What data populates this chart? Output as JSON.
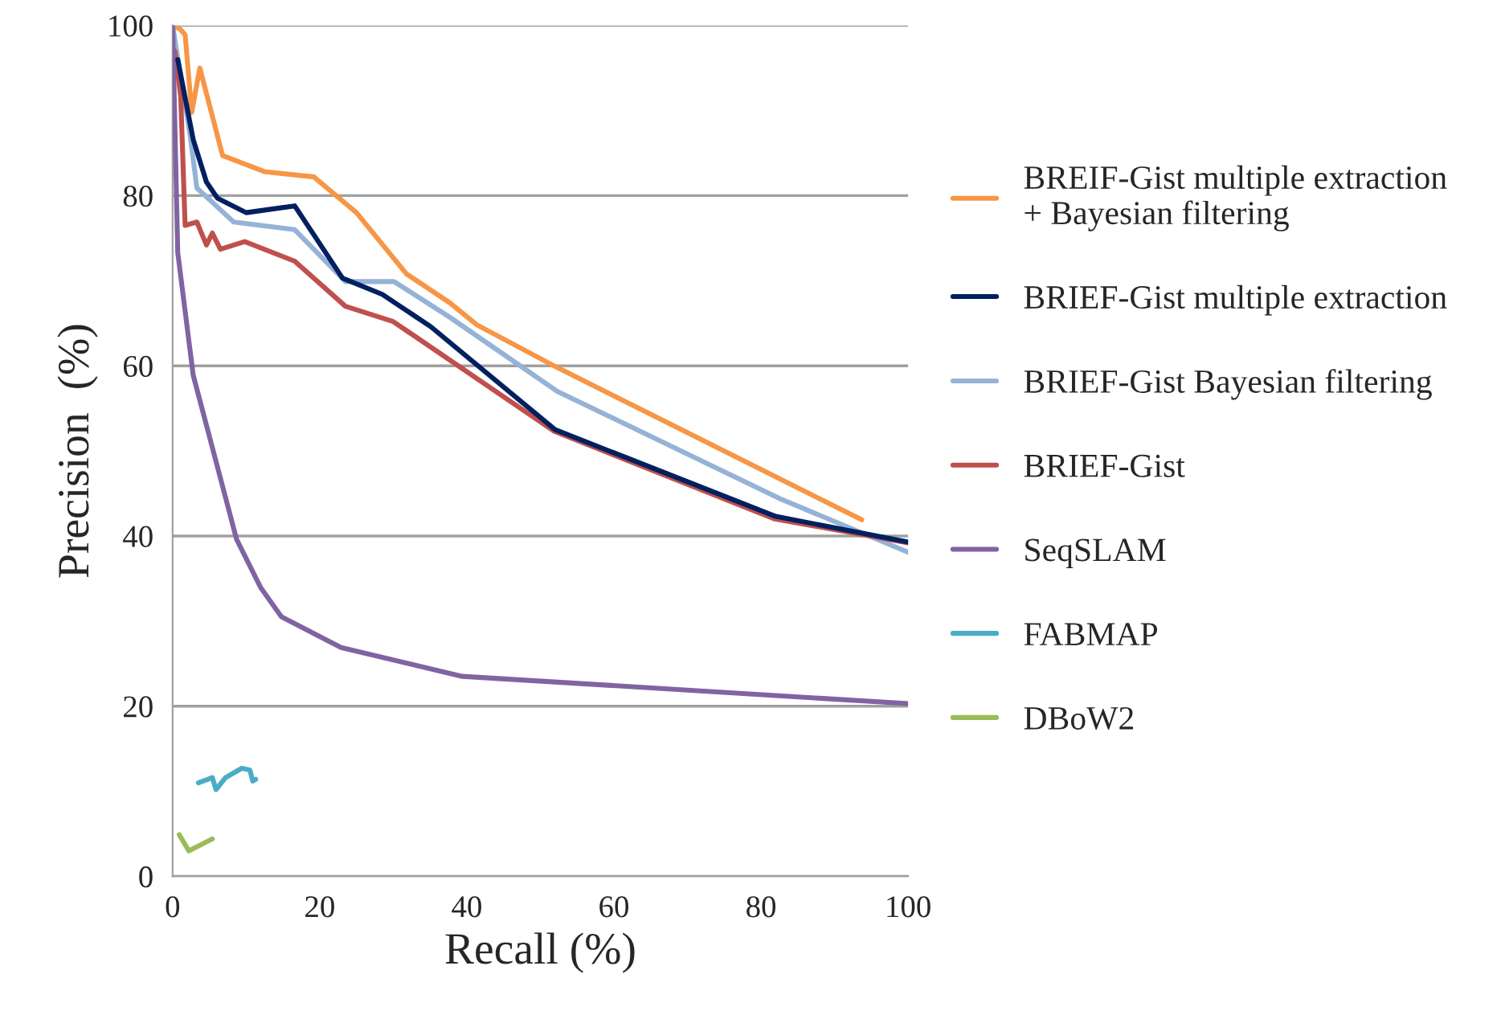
{
  "chart_data": {
    "type": "line",
    "xlabel": "Recall (%)",
    "ylabel": "Precision  (%)",
    "xlim": [
      0,
      100
    ],
    "xticks": [
      0,
      20,
      40,
      60,
      80,
      100
    ],
    "ylim": [
      0,
      100
    ],
    "yticks": [
      0,
      20,
      40,
      60,
      80,
      100
    ],
    "grid": "y",
    "legend": "right",
    "marker": "none",
    "line_style": "solid",
    "series": [
      {
        "name": "BREIF-Gist multiple extraction\n+ Bayesian filtering",
        "color": "#f79646",
        "x": [
          0,
          1,
          1.7,
          2.6,
          3.7,
          6.8,
          12.6,
          19.2,
          25,
          31.8,
          37.7,
          41.4,
          52.3,
          93.7
        ],
        "values": [
          100,
          99.6,
          98.9,
          89.8,
          95,
          84.7,
          82.8,
          82.2,
          78,
          70.8,
          67.4,
          64.8,
          59.8,
          41.9
        ]
      },
      {
        "name": "BRIEF-Gist multiple extraction",
        "color": "#002060",
        "x": [
          0.7,
          2.8,
          4.6,
          6.1,
          10,
          16.6,
          23.1,
          28.5,
          35.1,
          52,
          82,
          100
        ],
        "values": [
          96,
          86.6,
          81.6,
          79.7,
          78,
          78.8,
          70.3,
          68.4,
          64.6,
          52.5,
          42.3,
          39.3
        ]
      },
      {
        "name": "BRIEF-Gist Bayesian filtering",
        "color": "#95b3d7",
        "x": [
          0,
          2.4,
          3.3,
          8.3,
          16.6,
          23.5,
          30.1,
          37.7,
          52.3,
          82.8,
          100
        ],
        "values": [
          100,
          87,
          80.9,
          76.9,
          76,
          69.9,
          69.9,
          65.7,
          57,
          44.3,
          38.1
        ]
      },
      {
        "name": "BRIEF-Gist",
        "color": "#c0504d",
        "x": [
          0.3,
          1.1,
          1.7,
          3.3,
          4.6,
          5.4,
          6.5,
          9.8,
          16.6,
          23.5,
          30,
          51.9,
          81.9,
          100
        ],
        "values": [
          97,
          91.7,
          76.5,
          76.9,
          74.2,
          75.6,
          73.7,
          74.6,
          72.3,
          67,
          65.2,
          52.3,
          42,
          39.2
        ]
      },
      {
        "name": "SeqSLAM",
        "color": "#8064a2",
        "x": [
          0,
          0.7,
          2.2,
          2.8,
          8.7,
          12,
          14.8,
          22.9,
          39.4,
          100
        ],
        "values": [
          100,
          73.3,
          63,
          58.9,
          39.6,
          33.9,
          30.5,
          26.9,
          23.5,
          20.3
        ]
      },
      {
        "name": "FABMAP",
        "color": "#4bacc6",
        "x": [
          3.5,
          5.4,
          5.9,
          7.2,
          9.4,
          10.5,
          10.9,
          11.3
        ],
        "values": [
          11,
          11.6,
          10.2,
          11.6,
          12.7,
          12.5,
          11.2,
          11.4
        ]
      },
      {
        "name": "DBoW2",
        "color": "#9bbb59",
        "x": [
          0.9,
          2.2,
          5.4
        ],
        "values": [
          4.9,
          3,
          4.4
        ]
      }
    ]
  }
}
